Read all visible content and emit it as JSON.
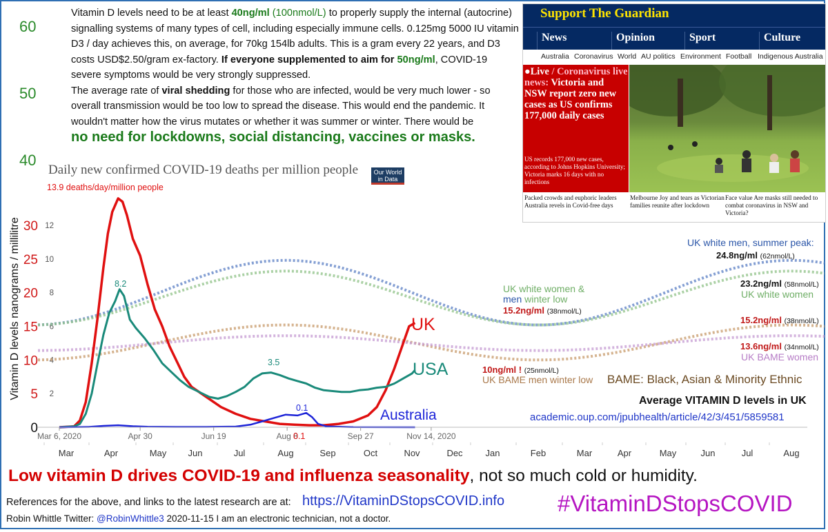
{
  "intro": {
    "p1_a": "Vitamin D levels need to be at least ",
    "p1_b": "40ng/ml",
    "p1_c": " (100nmol/L)",
    "p1_d": " to properly supply the internal (autocrine) signalling systems of many types of cell, including especially immune cells. 0.125mg 5000 IU vitamin D3 / day achieves this, on average, for 70kg 154lb adults.  This is a gram every 22 years, and D3 costs USD$2.50/gram ex-factory.  ",
    "p1_e": "If everyone supplemented to aim for ",
    "p1_f": "50ng/ml",
    "p1_g": ", COVID-19 severe symptoms would be very strongly suppressed.",
    "p2_a": "The average rate of ",
    "p2_b": "viral shedding",
    "p2_c": " for those who are infected, would be very much lower - so overall transmission would be too low to spread the disease.  This would end the pandemic.  It wouldn't matter how the virus mutates or whether it was summer or winter.  There would be",
    "p2_d": "no need for lockdowns, social distancing, vaccines or masks",
    "p2_e": "."
  },
  "left_scale": [
    "60",
    "50",
    "40"
  ],
  "owid": {
    "title": "Daily new confirmed COVID-19 deaths per million people",
    "logo_l1": "Our World",
    "logo_l2": "in Data"
  },
  "guardian": {
    "support": "Support The Guardian",
    "pillars": [
      "News",
      "Opinion",
      "Sport",
      "Culture"
    ],
    "subnav": [
      "Australia",
      "Coronavirus",
      "World",
      "AU politics",
      "Environment",
      "Football",
      "Indigenous Australia"
    ],
    "live_label": "Live",
    "live_kicker": " / Coronavirus live news:",
    "live_headline": " Victoria and NSW report zero new cases as US confirms 177,000 daily cases",
    "live_body": "US records 177,000 new cases, according to Johns Hopkins University; Victoria marks 16 days with no infections",
    "card1": "Packed crowds and euphoric leaders\nAustralia revels in Covid-free days",
    "card2": "Melbourne Joy and tears as Victorian families reunite after lockdown",
    "card3": "Face value Are masks still needed to combat coronavirus in NSW and Victoria?"
  },
  "chart_data": {
    "type": "line",
    "title": "Daily new confirmed COVID-19 deaths per million people",
    "ylabel": "Vitamin D levels nanograms / millilitre",
    "vitd_axis": {
      "range": [
        0,
        35
      ],
      "ticks": [
        "0",
        "5",
        "10",
        "15",
        "20",
        "25",
        "30"
      ]
    },
    "deaths_axis": {
      "range": [
        0,
        14
      ],
      "ticks": [
        "0",
        "2",
        "4",
        "6",
        "8",
        "10",
        "12"
      ]
    },
    "date_ticks": [
      "Mar 6, 2020",
      "Apr 30",
      "Jun 19",
      "Aug 8",
      "Sep 27",
      "Nov 14, 2020"
    ],
    "month_labels": [
      "Mar",
      "Apr",
      "May",
      "Jun",
      "Jul",
      "Aug",
      "Sep",
      "Oct",
      "Nov",
      "Dec",
      "Jan",
      "Feb",
      "Mar",
      "Apr",
      "May",
      "Jun",
      "Jul",
      "Aug"
    ],
    "colors": {
      "uk": "#e01010",
      "usa": "#1a8a7a",
      "aus": "#1d24d8",
      "white_men": "#5b7fc4",
      "white_women": "#8fc287",
      "bame_men": "#c79a6a",
      "bame_women": "#c49ad1"
    },
    "covid_series": [
      {
        "name": "UK",
        "values": [
          [
            0,
            0
          ],
          [
            10,
            0.05
          ],
          [
            14,
            0.4
          ],
          [
            18,
            1.5
          ],
          [
            22,
            3.8
          ],
          [
            26,
            6.5
          ],
          [
            30,
            9.5
          ],
          [
            33,
            11.5
          ],
          [
            36,
            12.8
          ],
          [
            40,
            13.6
          ],
          [
            43,
            13.4
          ],
          [
            46,
            12.6
          ],
          [
            50,
            11.2
          ],
          [
            55,
            10.2
          ],
          [
            60,
            8.5
          ],
          [
            65,
            7.0
          ],
          [
            70,
            6.0
          ],
          [
            75,
            4.8
          ],
          [
            80,
            3.9
          ],
          [
            85,
            3.0
          ],
          [
            90,
            2.4
          ],
          [
            100,
            1.8
          ],
          [
            110,
            1.2
          ],
          [
            120,
            0.8
          ],
          [
            130,
            0.5
          ],
          [
            140,
            0.35
          ],
          [
            150,
            0.2
          ],
          [
            160,
            0.15
          ],
          [
            170,
            0.12
          ],
          [
            180,
            0.12
          ],
          [
            190,
            0.2
          ],
          [
            200,
            0.35
          ],
          [
            210,
            0.7
          ],
          [
            216,
            1.2
          ],
          [
            222,
            2.2
          ],
          [
            228,
            3.5
          ],
          [
            234,
            5.0
          ],
          [
            238,
            6.0
          ],
          [
            242,
            6.2
          ]
        ]
      },
      {
        "name": "USA",
        "values": [
          [
            0,
            0
          ],
          [
            10,
            0.05
          ],
          [
            14,
            0.2
          ],
          [
            18,
            0.8
          ],
          [
            22,
            2.0
          ],
          [
            26,
            3.8
          ],
          [
            30,
            5.5
          ],
          [
            34,
            6.8
          ],
          [
            38,
            7.5
          ],
          [
            41,
            8.2
          ],
          [
            44,
            7.8
          ],
          [
            48,
            6.4
          ],
          [
            52,
            5.9
          ],
          [
            58,
            5.3
          ],
          [
            64,
            4.6
          ],
          [
            70,
            3.8
          ],
          [
            76,
            3.3
          ],
          [
            82,
            2.8
          ],
          [
            88,
            2.4
          ],
          [
            95,
            2.1
          ],
          [
            102,
            1.8
          ],
          [
            108,
            1.7
          ],
          [
            114,
            1.85
          ],
          [
            120,
            2.1
          ],
          [
            126,
            2.4
          ],
          [
            132,
            2.9
          ],
          [
            138,
            3.2
          ],
          [
            144,
            3.25
          ],
          [
            150,
            3.1
          ],
          [
            156,
            2.9
          ],
          [
            162,
            2.75
          ],
          [
            168,
            2.6
          ],
          [
            174,
            2.35
          ],
          [
            180,
            2.2
          ],
          [
            186,
            2.15
          ],
          [
            192,
            2.1
          ],
          [
            198,
            2.1
          ],
          [
            204,
            2.2
          ],
          [
            210,
            2.25
          ],
          [
            216,
            2.35
          ],
          [
            222,
            2.4
          ],
          [
            228,
            2.6
          ],
          [
            234,
            2.9
          ],
          [
            240,
            3.2
          ],
          [
            242,
            3.4
          ]
        ]
      },
      {
        "name": "Australia",
        "values": [
          [
            0,
            0
          ],
          [
            20,
            0.02
          ],
          [
            30,
            0.08
          ],
          [
            40,
            0.12
          ],
          [
            50,
            0.06
          ],
          [
            60,
            0.03
          ],
          [
            80,
            0.02
          ],
          [
            100,
            0.02
          ],
          [
            120,
            0.04
          ],
          [
            130,
            0.15
          ],
          [
            138,
            0.35
          ],
          [
            146,
            0.55
          ],
          [
            154,
            0.75
          ],
          [
            162,
            0.7
          ],
          [
            168,
            0.85
          ],
          [
            172,
            0.6
          ],
          [
            176,
            0.2
          ],
          [
            182,
            0.05
          ],
          [
            200,
            0.01
          ],
          [
            242,
            0.0
          ]
        ]
      }
    ],
    "vitamin_d_series": [
      {
        "name": "UK white men",
        "summer_peak": "24.8ng/ml",
        "summer_peak_nmol": "(62nmol/L)",
        "winter_low": "15.2ng/ml",
        "winter_low_nmol": "(38nmol/L)"
      },
      {
        "name": "UK white women",
        "summer_peak": "23.2ng/ml",
        "summer_peak_nmol": "(58nmol/L)",
        "winter_low": "15.2ng/ml",
        "winter_low_nmol": "(38nmol/L)"
      },
      {
        "name": "UK BAME men",
        "summer_peak": "15.2ng/ml",
        "summer_peak_nmol": "(38nmol/L)",
        "winter_low": "10ng/ml !",
        "winter_low_nmol": "(25nmol/L)"
      },
      {
        "name": "UK BAME women",
        "summer_peak": "13.6ng/ml",
        "summer_peak_nmol": "(34nmol/L)",
        "winter_low": "",
        "winter_low_nmol": ""
      }
    ],
    "annotations": {
      "uk_peak": "13.9 deaths/day/million people",
      "usa_peak": "8.2",
      "usa_mid": "3.5",
      "aus_mid": "0.1",
      "uk_min": "0.1",
      "uk_label": "UK",
      "usa_label": "USA",
      "aus_label": "Australia",
      "white_men_title": "UK white men, summer peak:",
      "white_women_label": "UK white women",
      "winter_low_a": "UK white women &",
      "winter_low_b_men": "men",
      "winter_low_b_rest": " winter low",
      "bame_women_label": "UK BAME women",
      "bame_men_label": "UK BAME men winter low",
      "bame_def": "BAME: Black, Asian & Minority Ethnic"
    }
  },
  "footer": {
    "avg_title": "Average VITAMIN D levels in UK",
    "avg_url": "academic.oup.com/jpubhealth/article/42/3/451/5859581",
    "tagline_red": "Low vitamin D drives COVID-19 and influenza seasonality",
    "tagline_rest": ", not so much cold or humidity.",
    "refs": "References for the above, and links to the latest research are at:",
    "refs_url": "https://VitaminDStopsCOVID.info",
    "hashtag": "#VitaminDStopsCOVID",
    "byline_a": "Robin Whittle   Twitter: ",
    "twitter": "@RobinWhittle3",
    "byline_b": "  2020-11-15    I am an electronic technician, not a doctor."
  }
}
